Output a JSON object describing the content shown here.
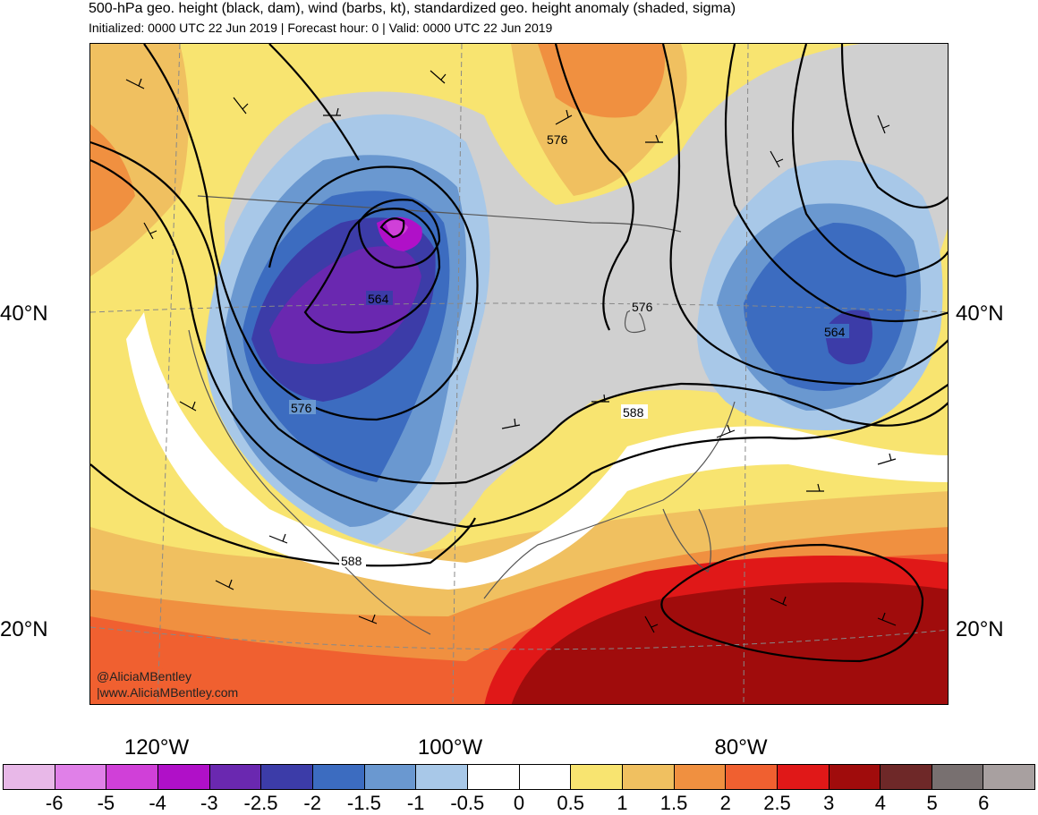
{
  "title": "500-hPa geo. height (black, dam), wind (barbs, kt), standardized geo. height anomaly (shaded, sigma)",
  "subtitle": "Initialized: 0000 UTC 22 Jun 2019 | Forecast hour: 0 | Valid: 0000 UTC 22 Jun 2019",
  "lat_labels": [
    "40°N",
    "20°N"
  ],
  "lon_labels": [
    "120°W",
    "100°W",
    "80°W"
  ],
  "contour_labels": [
    "576",
    "564",
    "576",
    "576",
    "564",
    "588",
    "588"
  ],
  "credits": [
    "@AliciaMBentley",
    "|www.AliciaMBentley.com"
  ],
  "colorbar": {
    "labels": [
      "-6",
      "-5",
      "-4",
      "-3",
      "-2.5",
      "-2",
      "-1.5",
      "-1",
      "-0.5",
      "0",
      "0.5",
      "1",
      "1.5",
      "2",
      "2.5",
      "3",
      "4",
      "5",
      "6"
    ],
    "colors": [
      "#e8b8e8",
      "#e080e8",
      "#d040d8",
      "#b010c8",
      "#6a28b0",
      "#3c3ca8",
      "#3c6cc0",
      "#6a98d0",
      "#a8c8e8",
      "#ffffff",
      "#ffffff",
      "#f8e470",
      "#f0c060",
      "#f09040",
      "#f06030",
      "#e01818",
      "#a00c0c",
      "#6e2828",
      "#787070",
      "#a8a0a0"
    ]
  },
  "colors": {
    "gray": "#d0d0d0",
    "yellow": "#f8e470",
    "orange_light": "#f0c060",
    "orange": "#f09040",
    "red": "#f06030",
    "darkred": "#a00c0c"
  }
}
